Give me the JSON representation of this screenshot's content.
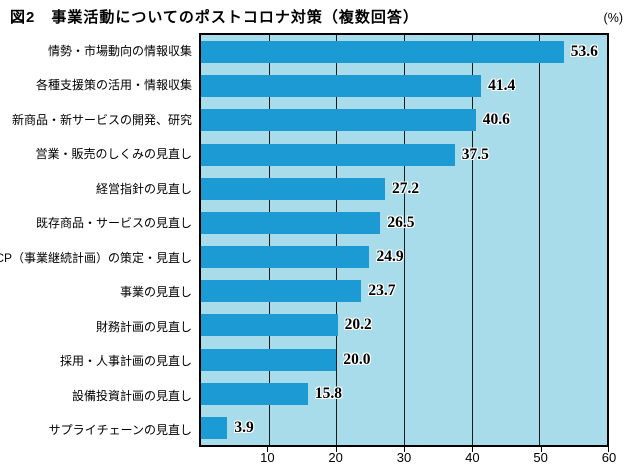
{
  "title": "図2　事業活動についてのポストコロナ対策（複数回答）",
  "unit_label": "(%)",
  "chart_data": {
    "type": "bar",
    "orientation": "horizontal",
    "title": "図2　事業活動についてのポストコロナ対策（複数回答）",
    "xlabel": "(%)",
    "ylabel": "",
    "xlim": [
      0,
      60
    ],
    "xticks": [
      "10",
      "20",
      "30",
      "40",
      "50",
      "60"
    ],
    "grid": true,
    "categories": [
      "情勢・市場動向の情報収集",
      "各種支援策の活用・情報収集",
      "新商品・新サービスの開発、研究",
      "営業・販売のしくみの見直し",
      "経営指針の見直し",
      "既存商品・サービスの見直し",
      "BCP（事業継続計画）の策定・見直し",
      "事業の見直し",
      "財務計画の見直し",
      "採用・人事計画の見直し",
      "設備投資計画の見直し",
      "サプライチェーンの見直し"
    ],
    "values": [
      53.6,
      41.4,
      40.6,
      37.5,
      27.2,
      26.5,
      24.9,
      23.7,
      20.2,
      20.0,
      15.8,
      3.9
    ],
    "value_labels": [
      "53.6",
      "41.4",
      "40.6",
      "37.5",
      "27.2",
      "26.5",
      "24.9",
      "23.7",
      "20.2",
      "20.0",
      "15.8",
      "3.9"
    ],
    "colors": {
      "bar": "#1b9ad4",
      "plot_bg": "#a8dcea",
      "grid": "#1a1a1a",
      "border": "#000000",
      "text": "#000000"
    },
    "legend_position": "none"
  }
}
